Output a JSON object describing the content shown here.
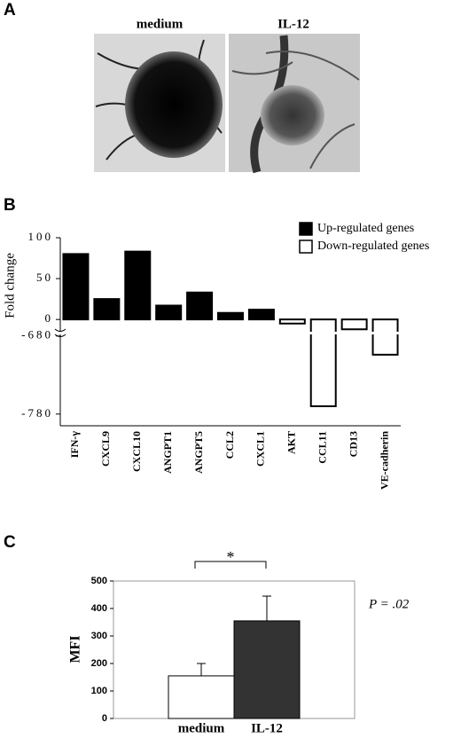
{
  "panel_labels": [
    "A",
    "B",
    "C"
  ],
  "images": [
    {
      "label": "medium"
    },
    {
      "label": "IL-12"
    }
  ],
  "chart_data": [
    {
      "type": "bar",
      "ylabel": "Fold change",
      "categories": [
        "IFN-γ",
        "CXCL9",
        "CXCL10",
        "ANGPT1",
        "ANGPT5",
        "CCL2",
        "CXCL1",
        "AKT",
        "CCL11",
        "CD13",
        "VE-cadherin"
      ],
      "series": [
        {
          "name": "Up-regulated genes",
          "color": "#000000",
          "values": [
            80,
            25,
            83,
            17,
            33,
            8,
            12,
            null,
            null,
            null,
            null
          ]
        },
        {
          "name": "Down-regulated genes",
          "color": "#ffffff",
          "values": [
            null,
            null,
            null,
            null,
            null,
            null,
            null,
            -5,
            -770,
            -12,
            -704
          ]
        }
      ],
      "ylim": [
        -795,
        100
      ],
      "ybreak": [
        -678,
        -15
      ],
      "yticks": [
        -780,
        -680,
        0,
        50,
        100
      ]
    },
    {
      "type": "bar",
      "ylabel": "MFI",
      "categories": [
        "medium",
        "IL-12"
      ],
      "values": [
        155,
        355
      ],
      "errors": [
        45,
        90
      ],
      "colors": [
        "#ffffff",
        "#333333"
      ],
      "ylim": [
        0,
        500
      ],
      "yticks": [
        0,
        100,
        200,
        300,
        400,
        500
      ],
      "annotations": [
        "*",
        "P = .02"
      ]
    }
  ]
}
